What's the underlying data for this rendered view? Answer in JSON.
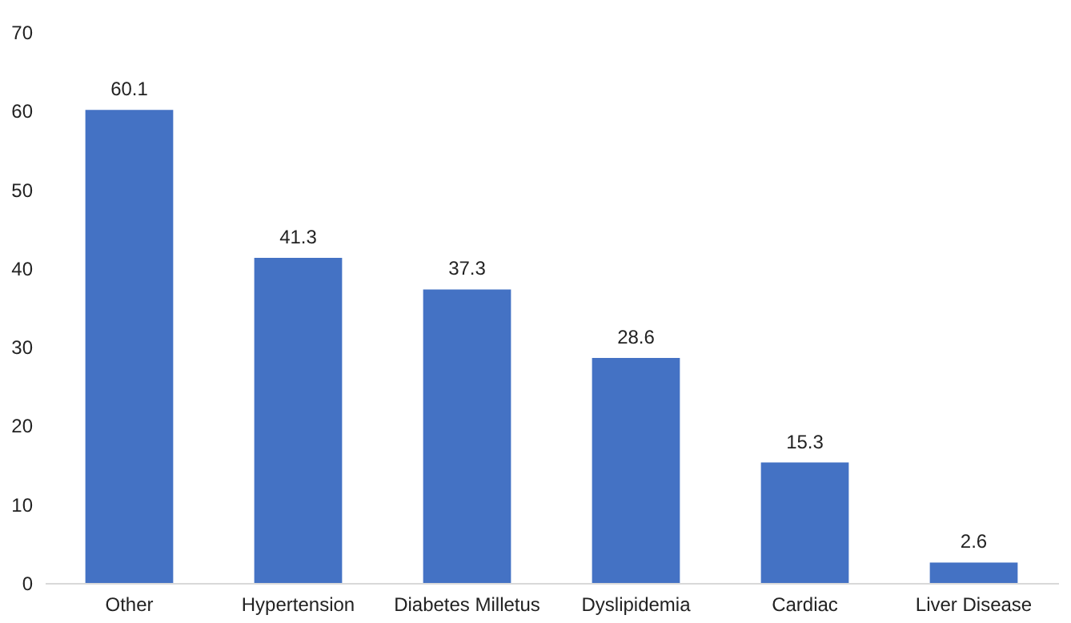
{
  "chart_data": {
    "type": "bar",
    "categories": [
      "Other",
      "Hypertension",
      "Diabetes Milletus",
      "Dyslipidemia",
      "Cardiac",
      "Liver Disease"
    ],
    "values": [
      60.1,
      41.3,
      37.3,
      28.6,
      15.3,
      2.6
    ],
    "color": "#4472c4",
    "ylim": [
      0,
      70
    ],
    "yticks": [
      0,
      10,
      20,
      30,
      40,
      50,
      60,
      70
    ],
    "data_labels": true,
    "grid": false
  }
}
